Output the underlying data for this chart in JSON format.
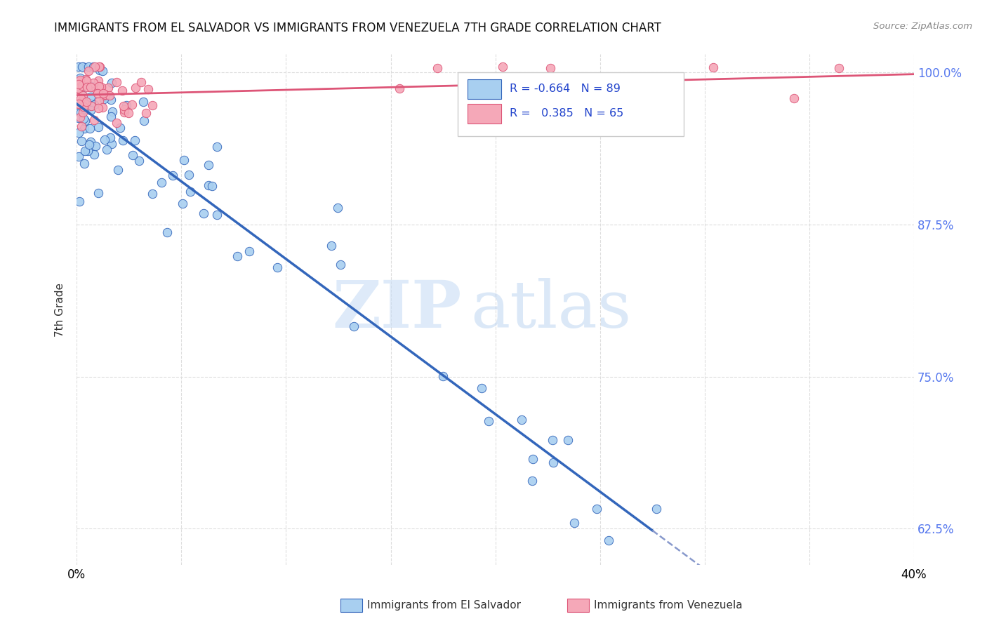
{
  "title": "IMMIGRANTS FROM EL SALVADOR VS IMMIGRANTS FROM VENEZUELA 7TH GRADE CORRELATION CHART",
  "source": "Source: ZipAtlas.com",
  "ylabel": "7th Grade",
  "watermark_zip": "ZIP",
  "watermark_atlas": "atlas",
  "legend_blue_label": "Immigrants from El Salvador",
  "legend_pink_label": "Immigrants from Venezuela",
  "R_blue": -0.664,
  "N_blue": 89,
  "R_pink": 0.385,
  "N_pink": 65,
  "y_ticks": [
    0.625,
    0.75,
    0.875,
    1.0
  ],
  "y_tick_labels": [
    "62.5%",
    "75.0%",
    "87.5%",
    "100.0%"
  ],
  "x_min": 0.0,
  "x_max": 0.4,
  "y_min": 0.595,
  "y_max": 1.015,
  "color_blue": "#a8cff0",
  "color_pink": "#f5a8b8",
  "line_blue": "#3366bb",
  "line_pink": "#dd5577",
  "dash_color": "#8899cc",
  "bg_color": "#FFFFFF",
  "grid_color": "#dddddd",
  "right_tick_color": "#5577ee",
  "title_color": "#111111",
  "source_color": "#888888",
  "legend_text_color": "#2244cc"
}
